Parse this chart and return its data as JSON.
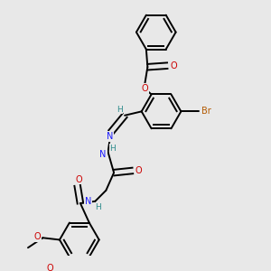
{
  "background_color": "#e8e8e8",
  "fig_width": 3.0,
  "fig_height": 3.0,
  "dpi": 100,
  "atom_colors": {
    "C": "#000000",
    "N": "#1a1aff",
    "O": "#cc0000",
    "Br": "#b35900",
    "H": "#2e8b8b"
  },
  "bond_color": "#000000",
  "bond_lw": 1.4,
  "dbo": 0.012,
  "fs": 7.0
}
